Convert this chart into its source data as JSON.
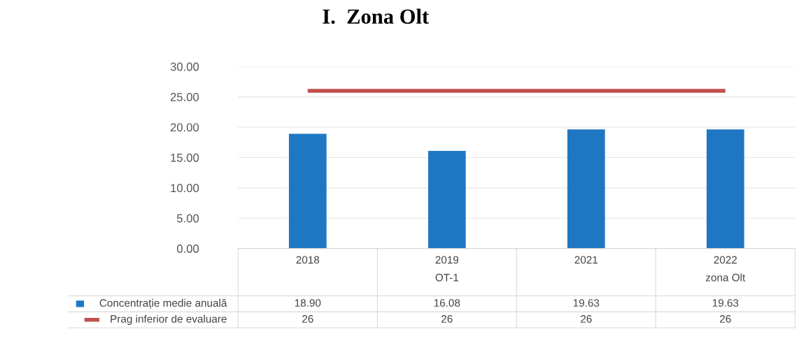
{
  "chart_data": {
    "type": "bar",
    "title": "I.  Zona Olt",
    "categories": [
      "2018",
      "2019\nOT-1",
      "2021",
      "2022\nzona Olt"
    ],
    "series": [
      {
        "name": "Concentrație medie anuală",
        "color": "#1f77c4",
        "values": [
          18.9,
          16.08,
          19.63,
          19.63
        ],
        "value_labels": [
          "18.90",
          "16.08",
          "19.63",
          "19.63"
        ]
      },
      {
        "name": "Prag inferior de evaluare",
        "type": "line",
        "color": "#c0504d",
        "values": [
          26,
          26,
          26,
          26
        ],
        "value_labels": [
          "26",
          "26",
          "26",
          "26"
        ]
      }
    ],
    "ylim": [
      0,
      30
    ],
    "yticks": [
      {
        "value": 0,
        "label": "0.00"
      },
      {
        "value": 5,
        "label": "5.00"
      },
      {
        "value": 10,
        "label": "10.00"
      },
      {
        "value": 15,
        "label": "15.00"
      },
      {
        "value": 20,
        "label": "20.00"
      },
      {
        "value": 25,
        "label": "25.00"
      },
      {
        "value": 30,
        "label": "30.00"
      }
    ],
    "grid": "y",
    "legend": "bottom left"
  }
}
